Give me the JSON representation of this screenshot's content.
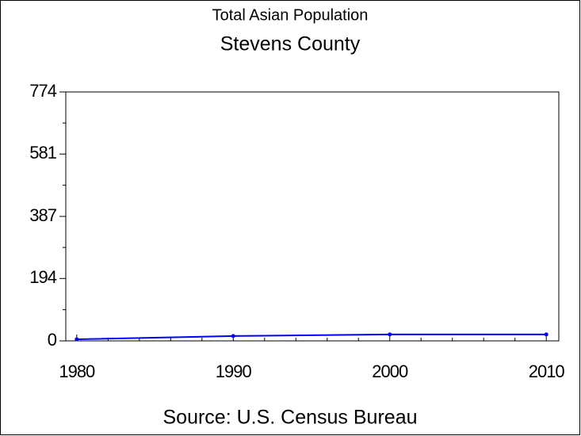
{
  "chart_data": {
    "type": "line",
    "title": "Total Asian Population",
    "subtitle": "Stevens County",
    "source": "Source: U.S. Census Bureau",
    "x": [
      1980,
      1990,
      2000,
      2010
    ],
    "series": [
      {
        "name": "Total Asian Population",
        "color": "#0000ff",
        "values": [
          5,
          15,
          20,
          20
        ]
      }
    ],
    "xlim": [
      1979.3,
      2010.8
    ],
    "xticks": [
      1980,
      1990,
      2000,
      2010
    ],
    "ylim": [
      0,
      774
    ],
    "yticks": [
      0,
      194,
      387,
      581,
      774
    ]
  }
}
